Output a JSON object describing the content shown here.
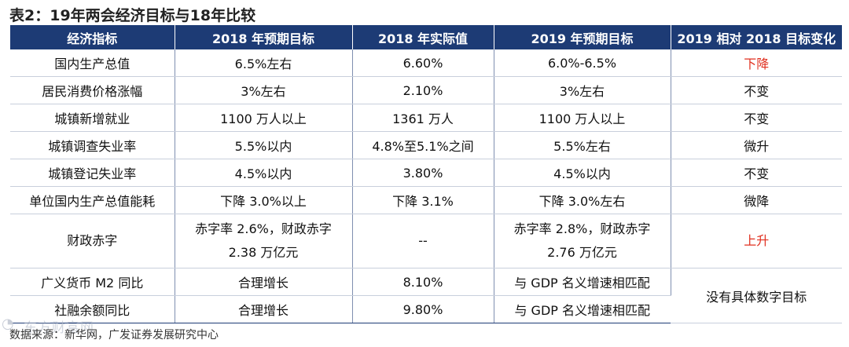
{
  "title": "表2：19年两会经济目标与18年比较",
  "headers": [
    "经济指标",
    "2018 年预期目标",
    "2018 年实际值",
    "2019 年预期目标",
    "2019 相对 2018 目标变化"
  ],
  "rows": [
    {
      "indicator": "国内生产总值",
      "target_2018": "6.5%左右",
      "actual_2018": "6.60%",
      "target_2019": "6.0%-6.5%",
      "change": "下降"
    },
    {
      "indicator": "居民消费价格涨幅",
      "target_2018": "3%左右",
      "actual_2018": "2.10%",
      "target_2019": "3%左右",
      "change": "不变"
    },
    {
      "indicator": "城镇新增就业",
      "target_2018": "1100 万人以上",
      "actual_2018": "1361 万人",
      "target_2019": "1100 万人以上",
      "change": "不变"
    },
    {
      "indicator": "城镇调查失业率",
      "target_2018": "5.5%以内",
      "actual_2018": "4.8%至5.1%之间",
      "target_2019": "5.5%左右",
      "change": "微升"
    },
    {
      "indicator": "城镇登记失业率",
      "target_2018": "4.5%以内",
      "actual_2018": "3.80%",
      "target_2019": "4.5%以内",
      "change": "不变"
    },
    {
      "indicator": "单位国内生产总值能耗",
      "target_2018": "下降 3.0%以上",
      "actual_2018": "下降 3.1%",
      "target_2019": "下降 3.0%左右",
      "change": "微降"
    },
    {
      "indicator": "财政赤字",
      "target_2018_line1": "赤字率 2.6%，财政赤字",
      "target_2018_line2": "2.38 万亿元",
      "actual_2018": "--",
      "target_2019_line1": "赤字率 2.8%，财政赤字",
      "target_2019_line2": "2.76 万亿元",
      "change": "上升"
    },
    {
      "indicator": "广义货币 M2 同比",
      "target_2018": "合理增长",
      "actual_2018": "8.10%",
      "target_2019": "与 GDP 名义增速相匹配"
    },
    {
      "indicator": "社融余额同比",
      "target_2018": "合理增长",
      "actual_2018": "9.80%",
      "target_2019": "与 GDP 名义增速相匹配"
    }
  ],
  "merged_change": "没有具体数字目标",
  "source": "数据来源：新华网，广发证券发展研究中心",
  "watermark": "东方财富网",
  "colors": {
    "header_bg": "#1d3b75",
    "header_text": "#ffffff",
    "highlight": "#e03020"
  }
}
